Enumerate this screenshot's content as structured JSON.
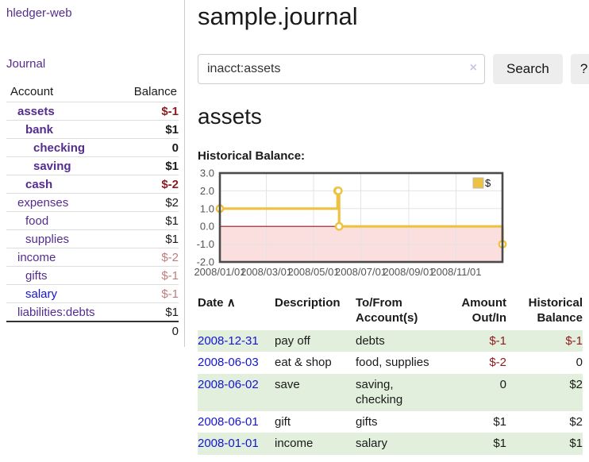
{
  "sidebar": {
    "brand": "hledger-web",
    "journal_link": "Journal",
    "accounts_table": {
      "headers": {
        "account": "Account",
        "balance": "Balance"
      },
      "rows": [
        {
          "name": "assets",
          "balance": "$-1",
          "indent": 1,
          "bold": true,
          "balance_color": "negative"
        },
        {
          "name": "bank",
          "balance": "$1",
          "indent": 2,
          "bold": true,
          "balance_color": "normal"
        },
        {
          "name": "checking",
          "balance": "0",
          "indent": 3,
          "bold": true,
          "balance_color": "normal"
        },
        {
          "name": "saving",
          "balance": "$1",
          "indent": 3,
          "bold": true,
          "balance_color": "normal"
        },
        {
          "name": "cash",
          "balance": "$-2",
          "indent": 2,
          "bold": true,
          "balance_color": "negative"
        },
        {
          "name": "expenses",
          "balance": "$2",
          "indent": 1,
          "bold": false,
          "balance_color": "normal"
        },
        {
          "name": "food",
          "balance": "$1",
          "indent": 2,
          "bold": false,
          "balance_color": "normal"
        },
        {
          "name": "supplies",
          "balance": "$1",
          "indent": 2,
          "bold": false,
          "balance_color": "normal"
        },
        {
          "name": "income",
          "balance": "$-2",
          "indent": 1,
          "bold": false,
          "balance_color": "negative-muted"
        },
        {
          "name": "gifts",
          "balance": "$-1",
          "indent": 2,
          "bold": false,
          "balance_color": "negative-muted"
        },
        {
          "name": "salary",
          "balance": "$-1",
          "indent": 2,
          "bold": false,
          "balance_color": "negative-muted",
          "link_color": "blue"
        },
        {
          "name": "liabilities:debts",
          "balance": "$1",
          "indent": 1,
          "bold": false,
          "balance_color": "normal"
        }
      ],
      "total": "0"
    }
  },
  "header": {
    "title": "sample.journal"
  },
  "search": {
    "value": "inacct:assets",
    "clear_icon": "×",
    "search_button": "Search",
    "help_button": "?"
  },
  "account_page": {
    "heading": "assets",
    "chart_title": "Historical Balance:"
  },
  "chart_data": {
    "type": "line",
    "title": "Historical Balance",
    "step": true,
    "grid": true,
    "legend_position": "top-right",
    "ylim": [
      -2,
      3
    ],
    "yticks": [
      3.0,
      2.0,
      1.0,
      0.0,
      -1.0,
      -2.0
    ],
    "xrange": [
      "2008-01-01",
      "2008-12-31"
    ],
    "xticks": [
      {
        "label": "2008/01/01",
        "date": "2008-01-01"
      },
      {
        "label": "2008/03/01",
        "date": "2008-03-01"
      },
      {
        "label": "2008/05/01",
        "date": "2008-05-01"
      },
      {
        "label": "2008/07/01",
        "date": "2008-07-01"
      },
      {
        "label": "2008/09/01",
        "date": "2008-09-01"
      },
      {
        "label": "2008/11/01",
        "date": "2008-11-01"
      }
    ],
    "series": [
      {
        "name": "$",
        "color": "#edc240",
        "points": [
          [
            "2008-01-01",
            1
          ],
          [
            "2008-06-01",
            2
          ],
          [
            "2008-06-02",
            2
          ],
          [
            "2008-06-03",
            0
          ],
          [
            "2008-12-31",
            -1
          ]
        ]
      }
    ]
  },
  "register": {
    "columns": {
      "date": "Date",
      "description": "Description",
      "accounts": "To/From Account(s)",
      "amount": "Amount Out/In",
      "balance": "Historical Balance"
    },
    "sort_icon": "∧",
    "rows": [
      {
        "date": "2008-12-31",
        "description": "pay off",
        "accounts": "debts",
        "amount": "$-1",
        "amount_negative": true,
        "balance": "$-1",
        "balance_negative": true,
        "highlight": true
      },
      {
        "date": "2008-06-03",
        "description": "eat & shop",
        "accounts": "food, supplies",
        "amount": "$-2",
        "amount_negative": true,
        "balance": "0",
        "balance_negative": false,
        "highlight": false
      },
      {
        "date": "2008-06-02",
        "description": "save",
        "accounts": "saving, checking",
        "amount": "0",
        "amount_negative": false,
        "balance": "$2",
        "balance_negative": false,
        "highlight": true
      },
      {
        "date": "2008-06-01",
        "description": "gift",
        "accounts": "gifts",
        "amount": "$1",
        "amount_negative": false,
        "balance": "$2",
        "balance_negative": false,
        "highlight": false
      },
      {
        "date": "2008-01-01",
        "description": "income",
        "accounts": "salary",
        "amount": "$1",
        "amount_negative": false,
        "balance": "$1",
        "balance_negative": false,
        "highlight": true
      }
    ]
  },
  "colors": {
    "purple": "#542c90",
    "blue": "#1414d4",
    "negative": "#8f1a1e",
    "negative_muted": "#be7d7d",
    "text": "#1a1a1a",
    "row_highlight": "#e2efdc",
    "button_bg": "#ededed",
    "border_light": "#dddddd",
    "clear_icon": "#cfc4e6",
    "chart_line": "#edc240",
    "chart_negative_fill": "#fbdede",
    "chart_zero_line": "#8b1a1a",
    "chart_grid": "#e3e3e3",
    "chart_frame": "#4a4a4a",
    "chart_tick_text": "#545454"
  }
}
